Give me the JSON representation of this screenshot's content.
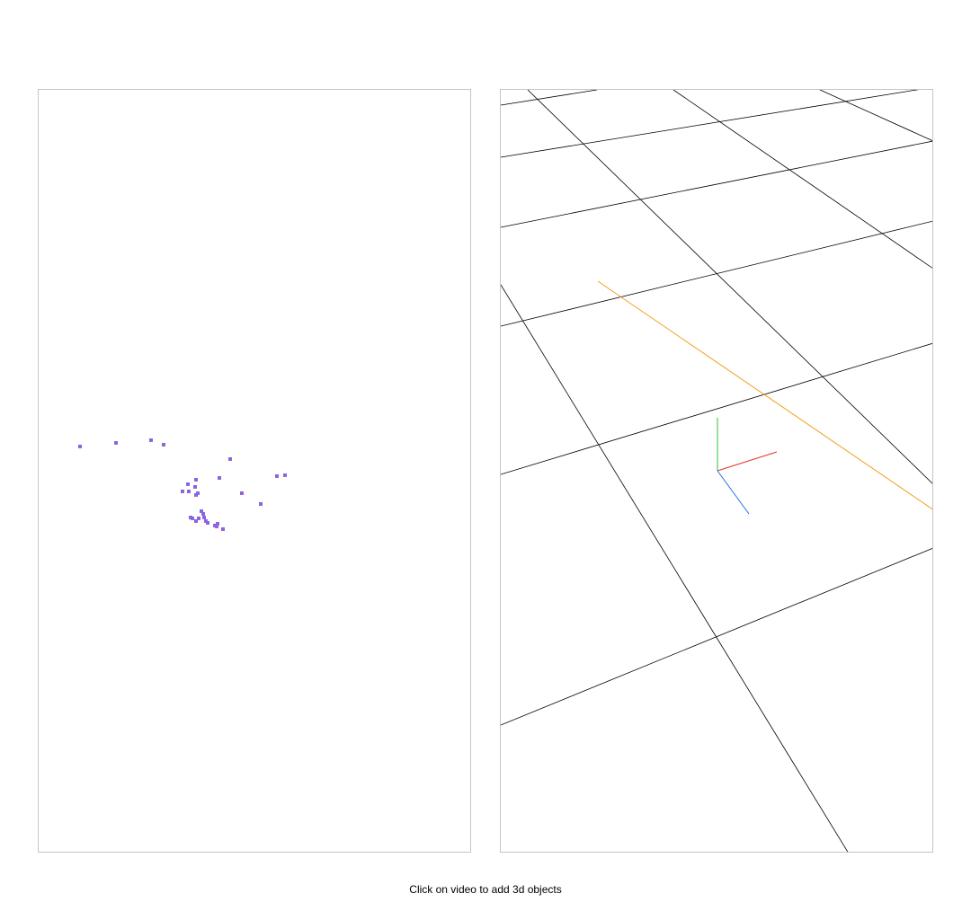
{
  "instruction_text": "Click on video to add 3d objects",
  "video_view": {
    "feature_point_color": "#7b68ee",
    "feature_point_shading": "#c05fb0",
    "feature_point_count": 30
  },
  "scene_view": {
    "grid_color": "#000000",
    "trajectory_color": "#f0a020",
    "axes": {
      "x_color": "#e03020",
      "y_color": "#30c030",
      "z_color": "#2070e0"
    }
  }
}
